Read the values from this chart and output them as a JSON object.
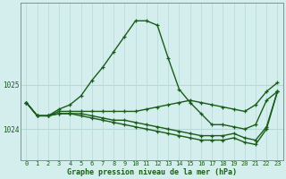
{
  "title": "Graphe pression niveau de la mer (hPa)",
  "bg_color": "#d4eeee",
  "line_color": "#1a5c1a",
  "grid_color": "#b8d8d8",
  "x_hours": [
    0,
    1,
    2,
    3,
    4,
    5,
    6,
    7,
    8,
    9,
    10,
    11,
    12,
    13,
    14,
    15,
    16,
    17,
    18,
    19,
    20,
    21,
    22,
    23
  ],
  "series": [
    [
      1024.6,
      1024.3,
      1024.3,
      1024.45,
      1024.55,
      1024.75,
      1025.1,
      1025.4,
      1025.75,
      1026.1,
      1026.45,
      1026.45,
      1026.35,
      1025.6,
      1024.9,
      1024.6,
      1024.35,
      1024.1,
      1024.1,
      1024.05,
      1024.0,
      1024.1,
      1024.65,
      1024.85
    ],
    [
      1024.6,
      1024.3,
      1024.3,
      1024.4,
      1024.4,
      1024.4,
      1024.4,
      1024.4,
      1024.4,
      1024.4,
      1024.4,
      1024.45,
      1024.5,
      1024.55,
      1024.6,
      1024.65,
      1024.6,
      1024.55,
      1024.5,
      1024.45,
      1024.4,
      1024.55,
      1024.85,
      1025.05
    ],
    [
      1024.6,
      1024.3,
      1024.3,
      1024.35,
      1024.35,
      1024.35,
      1024.3,
      1024.25,
      1024.2,
      1024.2,
      1024.15,
      1024.1,
      1024.05,
      1024.0,
      1023.95,
      1023.9,
      1023.85,
      1023.85,
      1023.85,
      1023.9,
      1023.8,
      1023.75,
      1024.05,
      1024.85
    ],
    [
      1024.6,
      1024.3,
      1024.3,
      1024.35,
      1024.35,
      1024.3,
      1024.25,
      1024.2,
      1024.15,
      1024.1,
      1024.05,
      1024.0,
      1023.95,
      1023.9,
      1023.85,
      1023.8,
      1023.75,
      1023.75,
      1023.75,
      1023.8,
      1023.7,
      1023.65,
      1024.0,
      1024.85
    ]
  ],
  "yticks": [
    1024,
    1025
  ],
  "ylim": [
    1023.3,
    1026.85
  ],
  "xlim": [
    -0.5,
    23.5
  ],
  "marker": "+",
  "markersize": 3.5,
  "linewidth": 1.0
}
